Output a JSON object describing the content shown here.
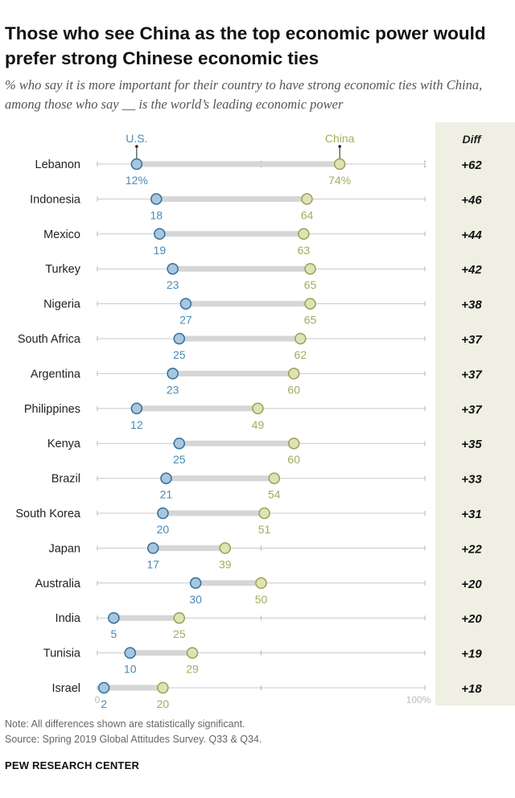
{
  "title": "Those who see China as the top economic power would prefer strong Chinese economic ties",
  "subtitle": "% who say it is more important for their country to have strong economic ties with China, among those who say __ is the world’s leading economic power",
  "note": "Note: All differences shown are statistically significant.",
  "source": "Source: Spring 2019 Global Attitudes Survey. Q33 & Q34.",
  "brand": "PEW RESEARCH CENTER",
  "colors": {
    "us": "#4a8ab5",
    "china": "#a5ab5e",
    "diff_bg": "#efefe3",
    "bar": "#d6d6d6",
    "axis": "#c9c9c9"
  },
  "chart_data": {
    "type": "dot-range",
    "series": [
      {
        "name": "U.S."
      },
      {
        "name": "China"
      }
    ],
    "diff_header": "Diff",
    "xlim": [
      0,
      100
    ],
    "axis_min_label": "0",
    "axis_max_label": "100%",
    "categories": [
      "Lebanon",
      "Indonesia",
      "Mexico",
      "Turkey",
      "Nigeria",
      "South Africa",
      "Argentina",
      "Philippines",
      "Kenya",
      "Brazil",
      "South Korea",
      "Japan",
      "Australia",
      "India",
      "Tunisia",
      "Israel"
    ],
    "us": [
      12,
      18,
      19,
      23,
      27,
      25,
      23,
      12,
      25,
      21,
      20,
      17,
      30,
      5,
      10,
      2
    ],
    "china": [
      74,
      64,
      63,
      65,
      65,
      62,
      60,
      49,
      60,
      54,
      51,
      39,
      50,
      25,
      29,
      20
    ],
    "us_labels": [
      "12%",
      "18",
      "19",
      "23",
      "27",
      "25",
      "23",
      "12",
      "25",
      "21",
      "20",
      "17",
      "30",
      "5",
      "10",
      "2"
    ],
    "china_labels": [
      "74%",
      "64",
      "63",
      "65",
      "65",
      "62",
      "60",
      "49",
      "60",
      "54",
      "51",
      "39",
      "50",
      "25",
      "29",
      "20"
    ],
    "diff": [
      "+62",
      "+46",
      "+44",
      "+42",
      "+38",
      "+37",
      "+37",
      "+37",
      "+35",
      "+33",
      "+31",
      "+22",
      "+20",
      "+20",
      "+19",
      "+18"
    ]
  }
}
